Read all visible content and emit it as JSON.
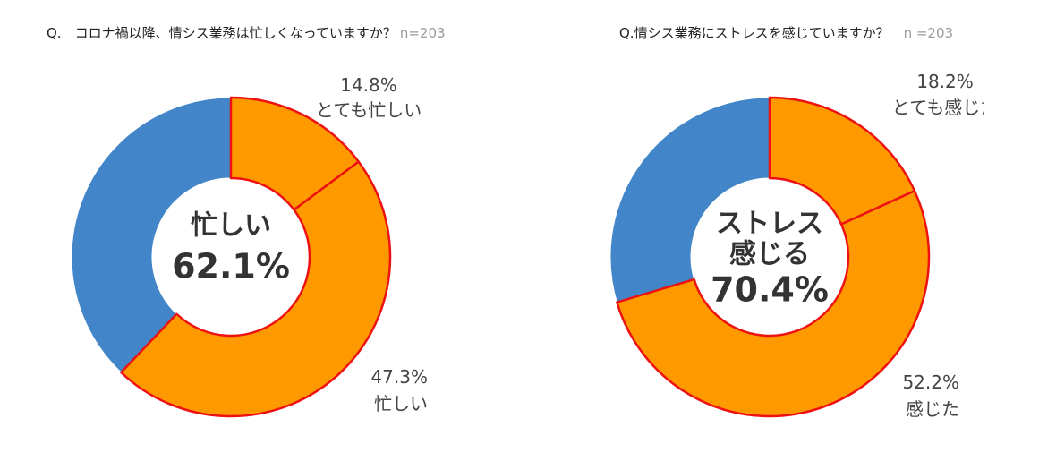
{
  "chart_data": [
    {
      "type": "pie",
      "question": "Q.　コロナ禍以降、情シス業務は忙しくなっていますか？",
      "n_label": "n=203",
      "center_lines": [
        "忙しい",
        "62.1%"
      ],
      "slices": [
        {
          "value": 14.8,
          "color": "#ff9900",
          "pct_label": "14.8%",
          "text_label": "とても忙しい"
        },
        {
          "value": 47.3,
          "color": "#ff9900",
          "pct_label": "47.3%",
          "text_label": "忙しい"
        },
        {
          "value": 37.9,
          "color": "#4285c8",
          "pct_label": "",
          "text_label": ""
        }
      ]
    },
    {
      "type": "pie",
      "question": "Q.情シス業務にストレスを感じていますか？",
      "n_label": "n =203",
      "center_lines": [
        "ストレス",
        "感じる",
        "70.4%"
      ],
      "slices": [
        {
          "value": 18.2,
          "color": "#ff9900",
          "pct_label": "18.2%",
          "text_label": "とても感じた"
        },
        {
          "value": 52.2,
          "color": "#ff9900",
          "pct_label": "52.2%",
          "text_label": "感じた"
        },
        {
          "value": 29.6,
          "color": "#4285c8",
          "pct_label": "",
          "text_label": ""
        }
      ]
    }
  ],
  "colors": {
    "highlight_stroke": "#ee1111",
    "other_stroke": "#ffffff"
  }
}
